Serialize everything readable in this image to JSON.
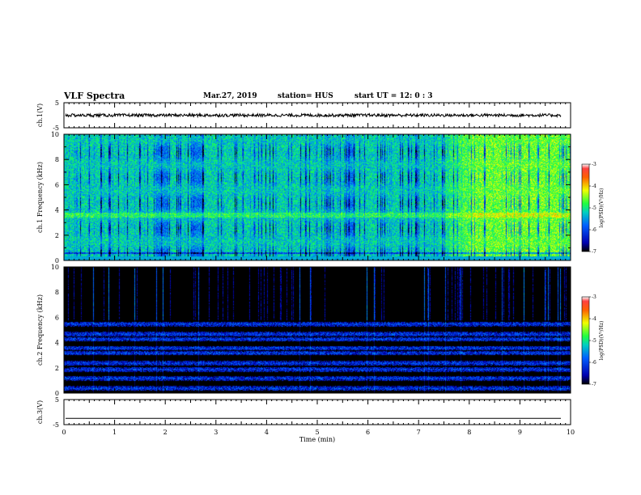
{
  "header": {
    "title": "VLF Spectra",
    "date": "Mar.27, 2019",
    "station": "station= HUS",
    "start": "start  UT =   12: 0  : 3"
  },
  "chart_data": [
    {
      "type": "line",
      "panel": "ch1-waveform",
      "ylabel": "ch.1(V)",
      "ylim": [
        -5,
        5
      ],
      "yticks": [
        "5",
        "-5"
      ],
      "xlim": [
        0,
        10
      ],
      "series": [
        {
          "color": "#000000",
          "mean": 0,
          "amplitude": 0.6
        }
      ]
    },
    {
      "type": "heatmap",
      "panel": "ch1-spectrogram",
      "ylabel": "ch.1 Frequency  (kHz)",
      "ylim": [
        0,
        10
      ],
      "yticks": [
        "0",
        "2",
        "4",
        "6",
        "8",
        "10"
      ],
      "xlim": [
        0,
        10
      ],
      "colorbar": {
        "label": "log(PSD)(V²/Hz)",
        "range": [
          -7,
          -3
        ],
        "ticks": [
          "-3",
          "-4",
          "-5",
          "-6",
          "-7"
        ]
      },
      "description_levels": {
        "baseline": -5.2,
        "late_enhancement_start_min": 7.3,
        "late_enhancement_level": -4.6,
        "dropout_level": -6.5
      }
    },
    {
      "type": "heatmap",
      "panel": "ch2-spectrogram",
      "ylabel": "ch.2 Frequency  (kHz)",
      "ylim": [
        0,
        10
      ],
      "yticks": [
        "0",
        "2",
        "4",
        "6",
        "8",
        "10"
      ],
      "xlim": [
        0,
        10
      ],
      "colorbar": {
        "label": "log(PSD)(V²/Hz)",
        "range": [
          -7,
          -3
        ],
        "ticks": [
          "-3",
          "-4",
          "-5",
          "-6",
          "-7"
        ]
      },
      "bands_khz": [
        0.4,
        1.2,
        1.9,
        2.4,
        3.2,
        3.6,
        4.3,
        4.7,
        5.5
      ]
    },
    {
      "type": "line",
      "panel": "ch3-waveform",
      "ylabel": "ch.3(V)",
      "ylim": [
        -5,
        5
      ],
      "yticks": [
        "5",
        "-5"
      ],
      "xlim": [
        0,
        10
      ],
      "series": [
        {
          "color": "#000000",
          "constant": -2.5
        }
      ]
    }
  ],
  "xaxis": {
    "label": "Time  (min)",
    "ticks": [
      "0",
      "1",
      "2",
      "3",
      "4",
      "5",
      "6",
      "7",
      "8",
      "9",
      "10"
    ]
  }
}
